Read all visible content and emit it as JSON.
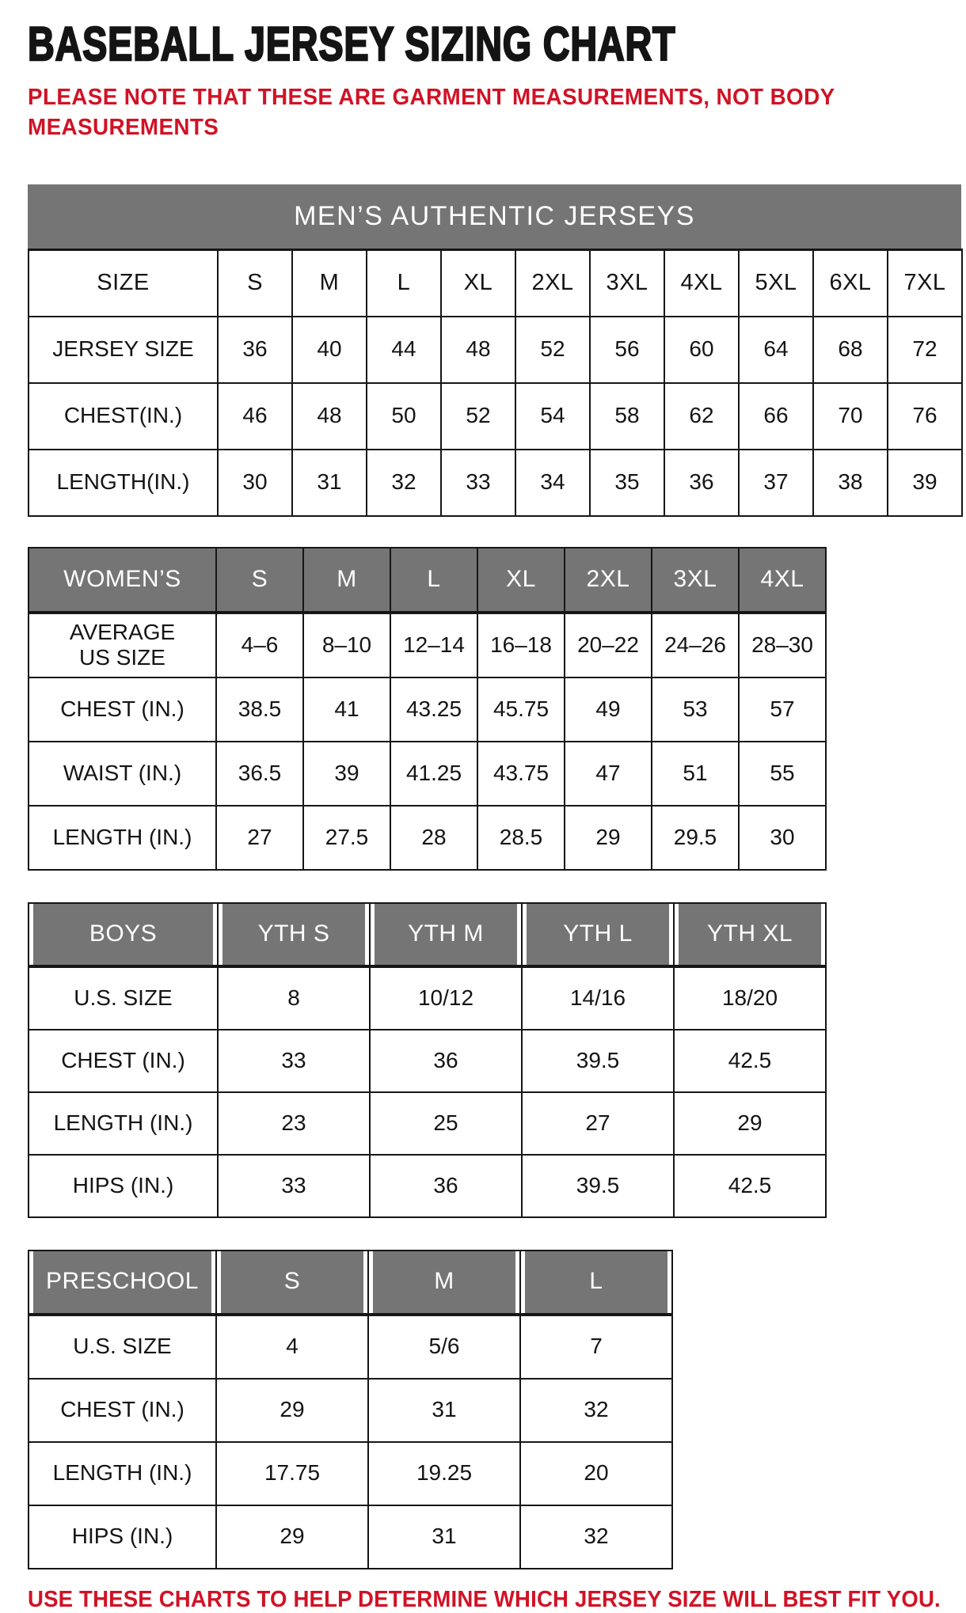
{
  "page": {
    "title": "BASEBALL JERSEY SIZING CHART",
    "note": "PLEASE NOTE THAT THESE ARE GARMENT MEASUREMENTS, NOT BODY\nMEASUREMENTS",
    "footer": "USE THESE CHARTS TO HELP DETERMINE WHICH JERSEY SIZE WILL BEST FIT YOU.",
    "colors": {
      "accent_red": "#d11225",
      "header_gray": "#757575",
      "text_black": "#141414"
    }
  },
  "tables": {
    "mens": {
      "banner": "MEN’S AUTHENTIC JERSEYS",
      "header": {
        "label": "SIZE",
        "cols": [
          "S",
          "M",
          "L",
          "XL",
          "2XL",
          "3XL",
          "4XL",
          "5XL",
          "6XL",
          "7XL"
        ]
      },
      "rows": [
        {
          "label": "JERSEY SIZE",
          "values": [
            "36",
            "40",
            "44",
            "48",
            "52",
            "56",
            "60",
            "64",
            "68",
            "72"
          ]
        },
        {
          "label": "CHEST(IN.)",
          "values": [
            "46",
            "48",
            "50",
            "52",
            "54",
            "58",
            "62",
            "66",
            "70",
            "76"
          ]
        },
        {
          "label": "LENGTH(IN.)",
          "values": [
            "30",
            "31",
            "32",
            "33",
            "34",
            "35",
            "36",
            "37",
            "38",
            "39"
          ]
        }
      ]
    },
    "womens": {
      "header": {
        "label": "WOMEN’S",
        "cols": [
          "S",
          "M",
          "L",
          "XL",
          "2XL",
          "3XL",
          "4XL"
        ]
      },
      "rows": [
        {
          "label": "AVERAGE\nUS SIZE",
          "values": [
            "4–6",
            "8–10",
            "12–14",
            "16–18",
            "20–22",
            "24–26",
            "28–30"
          ]
        },
        {
          "label": "CHEST (IN.)",
          "values": [
            "38.5",
            "41",
            "43.25",
            "45.75",
            "49",
            "53",
            "57"
          ]
        },
        {
          "label": "WAIST (IN.)",
          "values": [
            "36.5",
            "39",
            "41.25",
            "43.75",
            "47",
            "51",
            "55"
          ]
        },
        {
          "label": "LENGTH (IN.)",
          "values": [
            "27",
            "27.5",
            "28",
            "28.5",
            "29",
            "29.5",
            "30"
          ]
        }
      ]
    },
    "boys": {
      "header": {
        "label": "BOYS",
        "cols": [
          "YTH S",
          "YTH M",
          "YTH L",
          "YTH XL"
        ]
      },
      "rows": [
        {
          "label": "U.S. SIZE",
          "values": [
            "8",
            "10/12",
            "14/16",
            "18/20"
          ]
        },
        {
          "label": "CHEST (IN.)",
          "values": [
            "33",
            "36",
            "39.5",
            "42.5"
          ]
        },
        {
          "label": "LENGTH (IN.)",
          "values": [
            "23",
            "25",
            "27",
            "29"
          ]
        },
        {
          "label": "HIPS (IN.)",
          "values": [
            "33",
            "36",
            "39.5",
            "42.5"
          ]
        }
      ]
    },
    "preschool": {
      "header": {
        "label": "PRESCHOOL",
        "cols": [
          "S",
          "M",
          "L"
        ]
      },
      "rows": [
        {
          "label": "U.S. SIZE",
          "values": [
            "4",
            "5/6",
            "7"
          ]
        },
        {
          "label": "CHEST (IN.)",
          "values": [
            "29",
            "31",
            "32"
          ]
        },
        {
          "label": "LENGTH (IN.)",
          "values": [
            "17.75",
            "19.25",
            "20"
          ]
        },
        {
          "label": "HIPS (IN.)",
          "values": [
            "29",
            "31",
            "32"
          ]
        }
      ]
    }
  }
}
